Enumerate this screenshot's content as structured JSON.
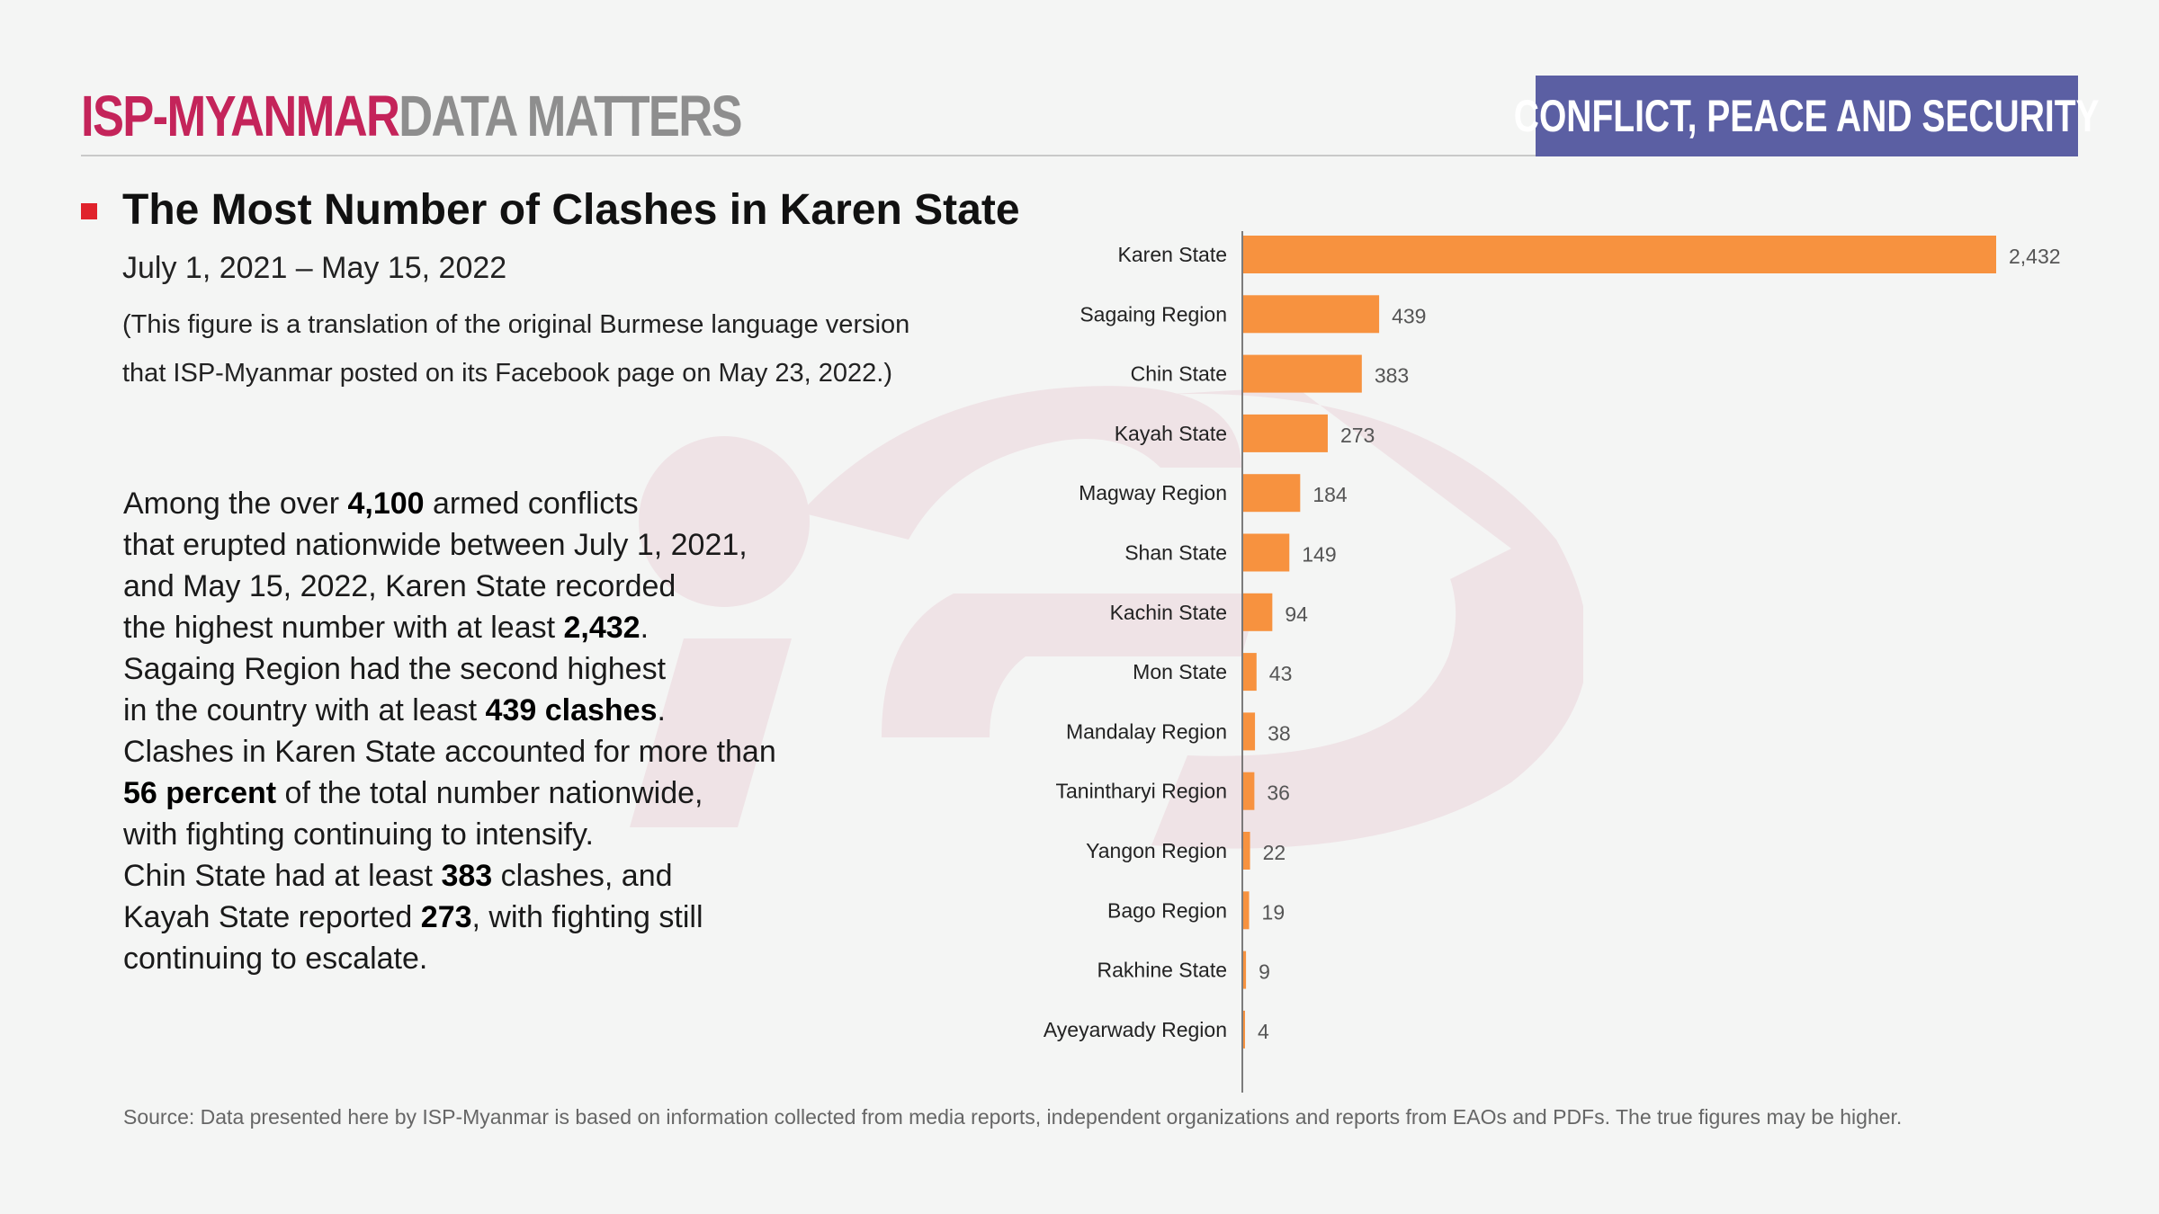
{
  "header": {
    "brand_primary": "ISP-MYANMAR",
    "brand_secondary": "DATA MATTERS",
    "category": "CONFLICT, PEACE AND SECURITY"
  },
  "content": {
    "title": "The Most Number of Clashes in Karen State",
    "date_range": "July 1, 2021 – May 15, 2022",
    "note_line1": "(This figure is a translation of the original Burmese language version",
    "note_line2": "that ISP-Myanmar posted on its Facebook page on May 23, 2022.)",
    "source": "Source: Data presented here by ISP-Myanmar is based on information collected from media reports, independent organizations and reports from EAOs and PDFs. The true figures may be higher."
  },
  "body": {
    "l1_a": "Among the over ",
    "l1_b": "4,100",
    "l1_c": " armed conflicts",
    "l2": "that erupted nationwide between July 1, 2021,",
    "l3": "and May 15, 2022, Karen State recorded",
    "l4_a": "the highest number with at least ",
    "l4_b": "2,432",
    "l4_c": ".",
    "l5": "Sagaing Region had the second highest",
    "l6_a": "in the country with at least ",
    "l6_b": "439 clashes",
    "l6_c": ".",
    "l7": "Clashes in Karen State accounted for more than",
    "l8_a": "56 percent",
    "l8_b": " of the total number nationwide,",
    "l9": "with fighting continuing to intensify.",
    "l10_a": "Chin State had at least ",
    "l10_b": "383",
    "l10_c": " clashes, and",
    "l11_a": "Kayah State reported ",
    "l11_b": "273",
    "l11_c": ", with fighting still",
    "l12": "continuing to escalate."
  },
  "colors": {
    "brand_primary": "#c4245a",
    "brand_secondary": "#8e8e8e",
    "badge": "#5b5fa3",
    "bar": "#f7923f",
    "bullet": "#e0222b"
  },
  "chart_data": {
    "type": "bar",
    "orientation": "horizontal",
    "categories": [
      "Karen State",
      "Sagaing Region",
      "Chin State",
      "Kayah State",
      "Magway Region",
      "Shan State",
      "Kachin State",
      "Mon State",
      "Mandalay Region",
      "Tanintharyi Region",
      "Yangon Region",
      "Bago Region",
      "Rakhine State",
      "Ayeyarwady Region"
    ],
    "values": [
      2432,
      439,
      383,
      273,
      184,
      149,
      94,
      43,
      38,
      36,
      22,
      19,
      9,
      4
    ],
    "value_labels": [
      "2,432",
      "439",
      "383",
      "273",
      "184",
      "149",
      "94",
      "43",
      "38",
      "36",
      "22",
      "19",
      "9",
      "4"
    ],
    "xlim": [
      0,
      2432
    ],
    "grid": false,
    "legend": "none"
  }
}
